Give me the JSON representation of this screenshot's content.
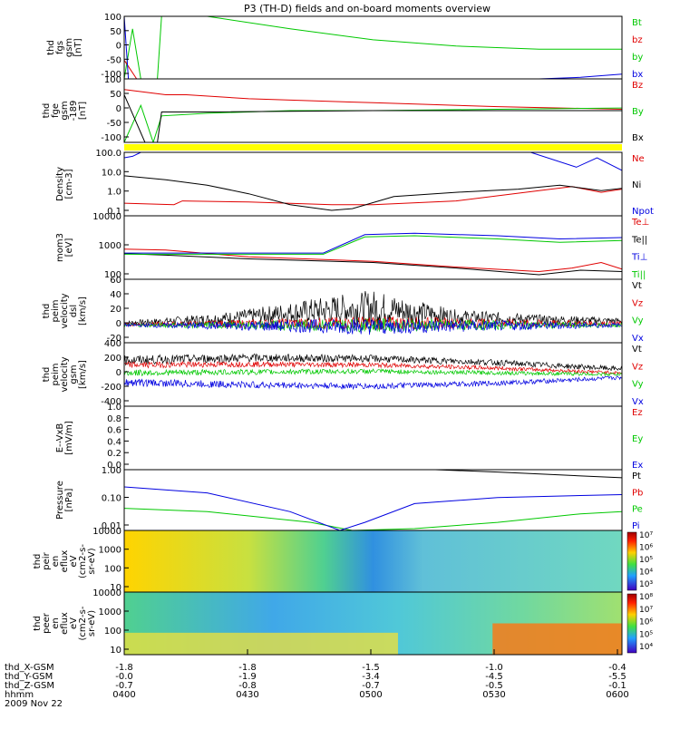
{
  "title": "P3 (TH-D) fields and on-board moments overview",
  "footer": {
    "labels": [
      "thd_X-GSM",
      "thd_Y-GSM",
      "thd_Z-GSM",
      "hhmm"
    ],
    "date": "2009 Nov 22",
    "rows": [
      [
        "-1.8",
        "-1.8",
        "-1.5",
        "-1.0",
        "-0.4"
      ],
      [
        "-0.0",
        "-1.9",
        "-3.4",
        "-4.5",
        "-5.5"
      ],
      [
        "-0.7",
        "-0.8",
        "-0.7",
        "-0.5",
        "-0.1"
      ],
      [
        "0400",
        "0430",
        "0500",
        "0530",
        "0600"
      ]
    ]
  },
  "colors": {
    "black": "#000000",
    "red": "#e00000",
    "green": "#00c800",
    "blue": "#0000e0",
    "yellow": "#ffff00"
  },
  "chart_data": [
    {
      "type": "line",
      "ylabel_lines": [
        "thd",
        "fgs",
        "gsm",
        "[nT]"
      ],
      "ylim": [
        -100,
        100
      ],
      "yticks": [
        "100",
        "50",
        "0",
        "-50",
        "-100"
      ],
      "xlim": [
        0,
        120
      ],
      "series": [
        {
          "name": "Bt",
          "color": "green",
          "points": [
            [
              0,
              -100
            ],
            [
              2,
              60
            ],
            [
              4,
              -100
            ],
            [
              8,
              -100
            ],
            [
              9,
              100
            ],
            [
              20,
              100
            ],
            [
              40,
              60
            ],
            [
              60,
              25
            ],
            [
              80,
              5
            ],
            [
              100,
              -5
            ],
            [
              120,
              -5
            ]
          ]
        },
        {
          "name": "bz",
          "color": "red",
          "points": [
            [
              0,
              -40
            ],
            [
              3,
              -100
            ],
            [
              120,
              -100
            ]
          ]
        },
        {
          "name": "by",
          "color": "green",
          "points": []
        },
        {
          "name": "bx",
          "color": "blue",
          "points": [
            [
              0,
              100
            ],
            [
              1,
              -100
            ],
            [
              100,
              -100
            ],
            [
              110,
              -95
            ],
            [
              120,
              -85
            ]
          ]
        }
      ]
    },
    {
      "type": "line",
      "ylabel_lines": [
        "thd",
        "fge",
        "gsm",
        "-189",
        "[nT]"
      ],
      "ylim": [
        -120,
        120
      ],
      "yticks": [
        "100",
        "50",
        "0",
        "-50",
        "-100"
      ],
      "xlim": [
        0,
        120
      ],
      "series": [
        {
          "name": "Bz",
          "color": "red",
          "points": [
            [
              0,
              80
            ],
            [
              5,
              70
            ],
            [
              10,
              60
            ],
            [
              15,
              60
            ],
            [
              30,
              45
            ],
            [
              60,
              30
            ],
            [
              90,
              15
            ],
            [
              120,
              5
            ]
          ]
        },
        {
          "name": "By",
          "color": "green",
          "points": [
            [
              0,
              -120
            ],
            [
              4,
              20
            ],
            [
              7,
              -120
            ],
            [
              9,
              -20
            ],
            [
              20,
              -10
            ],
            [
              40,
              0
            ],
            [
              60,
              0
            ],
            [
              90,
              5
            ],
            [
              120,
              10
            ]
          ]
        },
        {
          "name": "Bx",
          "color": "black",
          "points": [
            [
              0,
              60
            ],
            [
              5,
              -120
            ],
            [
              8,
              -120
            ],
            [
              9,
              -5
            ],
            [
              20,
              -5
            ],
            [
              60,
              0
            ],
            [
              90,
              0
            ],
            [
              120,
              0
            ]
          ]
        }
      ]
    },
    {
      "type": "line",
      "ylabel_lines": [
        "Density",
        "[cm-3]"
      ],
      "ylog": true,
      "ylim": [
        0.06,
        200
      ],
      "yticks": [
        "100.0",
        "10.0",
        "1.0",
        "0.1"
      ],
      "xlim": [
        0,
        120
      ],
      "series": [
        {
          "name": "Ne",
          "color": "red",
          "points": [
            [
              0,
              0.3
            ],
            [
              12,
              0.25
            ],
            [
              14,
              0.4
            ],
            [
              30,
              0.35
            ],
            [
              50,
              0.25
            ],
            [
              60,
              0.25
            ],
            [
              80,
              0.4
            ],
            [
              100,
              1.5
            ],
            [
              108,
              2.5
            ],
            [
              115,
              1.2
            ],
            [
              120,
              1.8
            ]
          ]
        },
        {
          "name": "Ni",
          "color": "black",
          "points": [
            [
              0,
              10
            ],
            [
              10,
              6
            ],
            [
              20,
              3
            ],
            [
              30,
              1
            ],
            [
              40,
              0.25
            ],
            [
              50,
              0.12
            ],
            [
              55,
              0.15
            ],
            [
              65,
              0.7
            ],
            [
              80,
              1.2
            ],
            [
              95,
              1.8
            ],
            [
              105,
              3
            ],
            [
              115,
              1.5
            ],
            [
              120,
              2
            ]
          ]
        },
        {
          "name": "Npot",
          "color": "blue",
          "points": [
            [
              0,
              100
            ],
            [
              2,
              120
            ],
            [
              4,
              200
            ],
            [
              98,
              200
            ],
            [
              109,
              30
            ],
            [
              114,
              100
            ],
            [
              120,
              20
            ]
          ]
        }
      ]
    },
    {
      "type": "line",
      "ylabel_lines": [
        "mom3",
        "[eV]"
      ],
      "ylog": true,
      "ylim": [
        40,
        12000
      ],
      "yticks": [
        "10000",
        "1000",
        "100"
      ],
      "xlim": [
        0,
        120
      ],
      "series": [
        {
          "name": "Te⊥",
          "color": "red",
          "points": [
            [
              0,
              600
            ],
            [
              10,
              550
            ],
            [
              30,
              300
            ],
            [
              60,
              200
            ],
            [
              80,
              120
            ],
            [
              100,
              80
            ],
            [
              108,
              110
            ],
            [
              115,
              180
            ],
            [
              120,
              100
            ]
          ]
        },
        {
          "name": "Te||",
          "color": "black",
          "points": [
            [
              0,
              400
            ],
            [
              10,
              350
            ],
            [
              30,
              250
            ],
            [
              60,
              180
            ],
            [
              80,
              110
            ],
            [
              100,
              60
            ],
            [
              110,
              90
            ],
            [
              120,
              80
            ]
          ]
        },
        {
          "name": "Ti⊥",
          "color": "blue",
          "points": [
            [
              0,
              420
            ],
            [
              25,
              420
            ],
            [
              48,
              420
            ],
            [
              58,
              2200
            ],
            [
              70,
              2500
            ],
            [
              90,
              2000
            ],
            [
              105,
              1500
            ],
            [
              120,
              1700
            ]
          ]
        },
        {
          "name": "Ti||",
          "color": "green",
          "points": [
            [
              0,
              380
            ],
            [
              25,
              380
            ],
            [
              48,
              380
            ],
            [
              58,
              1800
            ],
            [
              70,
              2000
            ],
            [
              90,
              1500
            ],
            [
              105,
              1100
            ],
            [
              120,
              1300
            ]
          ]
        }
      ]
    },
    {
      "type": "line",
      "ylabel_lines": [
        "thd",
        "peim",
        "velocity",
        "dsl",
        "[km/s]"
      ],
      "ylim": [
        -25,
        65
      ],
      "yticks": [
        "60",
        "40",
        "20",
        "0",
        "-20"
      ],
      "xlim": [
        0,
        120
      ],
      "noisy": true,
      "series": [
        {
          "name": "Vt",
          "color": "black",
          "center": [
            [
              0,
              3
            ],
            [
              20,
              8
            ],
            [
              45,
              20
            ],
            [
              60,
              25
            ],
            [
              80,
              12
            ],
            [
              100,
              8
            ],
            [
              120,
              6
            ]
          ],
          "amp": [
            [
              0,
              3
            ],
            [
              30,
              10
            ],
            [
              60,
              25
            ],
            [
              80,
              10
            ],
            [
              120,
              4
            ]
          ]
        },
        {
          "name": "Vz",
          "color": "red",
          "center": [
            [
              0,
              1
            ],
            [
              60,
              3
            ],
            [
              120,
              2
            ]
          ],
          "amp": [
            [
              0,
              2
            ],
            [
              60,
              10
            ],
            [
              120,
              3
            ]
          ]
        },
        {
          "name": "Vy",
          "color": "green",
          "center": [
            [
              0,
              0
            ],
            [
              60,
              0
            ],
            [
              120,
              0
            ]
          ],
          "amp": [
            [
              0,
              2
            ],
            [
              60,
              10
            ],
            [
              120,
              3
            ]
          ]
        },
        {
          "name": "Vx",
          "color": "blue",
          "center": [
            [
              0,
              0
            ],
            [
              60,
              -2
            ],
            [
              120,
              0
            ]
          ],
          "amp": [
            [
              0,
              2
            ],
            [
              60,
              12
            ],
            [
              120,
              3
            ]
          ]
        }
      ]
    },
    {
      "type": "line",
      "ylabel_lines": [
        "thd",
        "peim",
        "velocity",
        "gsm",
        "[km/s]"
      ],
      "ylim": [
        -400,
        400
      ],
      "yticks": [
        "400",
        "200",
        "0",
        "-200",
        "-400"
      ],
      "xlim": [
        0,
        120
      ],
      "noisy": true,
      "series": [
        {
          "name": "Vt",
          "color": "black",
          "center": [
            [
              0,
              180
            ],
            [
              30,
              210
            ],
            [
              60,
              200
            ],
            [
              90,
              150
            ],
            [
              120,
              70
            ]
          ],
          "amp": [
            [
              0,
              60
            ],
            [
              120,
              30
            ]
          ]
        },
        {
          "name": "Vz",
          "color": "red",
          "center": [
            [
              0,
              120
            ],
            [
              30,
              130
            ],
            [
              60,
              120
            ],
            [
              90,
              80
            ],
            [
              120,
              20
            ]
          ],
          "amp": [
            [
              0,
              40
            ],
            [
              120,
              20
            ]
          ]
        },
        {
          "name": "Vy",
          "color": "green",
          "center": [
            [
              0,
              20
            ],
            [
              30,
              30
            ],
            [
              60,
              40
            ],
            [
              90,
              20
            ],
            [
              120,
              0
            ]
          ],
          "amp": [
            [
              0,
              40
            ],
            [
              120,
              20
            ]
          ]
        },
        {
          "name": "Vx",
          "color": "blue",
          "center": [
            [
              0,
              -100
            ],
            [
              30,
              -130
            ],
            [
              60,
              -150
            ],
            [
              90,
              -110
            ],
            [
              120,
              -40
            ]
          ],
          "amp": [
            [
              0,
              50
            ],
            [
              120,
              25
            ]
          ]
        }
      ]
    },
    {
      "type": "line",
      "ylabel_lines": [
        "E--VxB",
        "[mV/m]"
      ],
      "ylim": [
        0,
        1.0
      ],
      "yticks": [
        "1.0",
        "0.8",
        "0.6",
        "0.4",
        "0.2",
        "0.0"
      ],
      "xlim": [
        0,
        120
      ],
      "series": [
        {
          "name": "Ez",
          "color": "red",
          "points": []
        },
        {
          "name": "Ey",
          "color": "green",
          "points": []
        },
        {
          "name": "Ex",
          "color": "blue",
          "points": []
        }
      ]
    },
    {
      "type": "line",
      "ylabel_lines": [
        "Pressure",
        "[nPa]"
      ],
      "ylog": true,
      "ylim": [
        0.006,
        1.1
      ],
      "yticks": [
        "1.00",
        "0.10",
        "0.01"
      ],
      "xlim": [
        0,
        120
      ],
      "series": [
        {
          "name": "Pt",
          "color": "black",
          "points": [
            [
              75,
              1.1
            ],
            [
              90,
              0.9
            ],
            [
              105,
              0.7
            ],
            [
              120,
              0.55
            ]
          ]
        },
        {
          "name": "Pb",
          "color": "red",
          "points": []
        },
        {
          "name": "Pe",
          "color": "green",
          "points": [
            [
              0,
              0.04
            ],
            [
              20,
              0.03
            ],
            [
              45,
              0.012
            ],
            [
              55,
              0.006
            ],
            [
              70,
              0.007
            ],
            [
              90,
              0.012
            ],
            [
              110,
              0.025
            ],
            [
              120,
              0.03
            ]
          ]
        },
        {
          "name": "Pi",
          "color": "blue",
          "points": [
            [
              0,
              0.25
            ],
            [
              20,
              0.15
            ],
            [
              40,
              0.03
            ],
            [
              52,
              0.006
            ],
            [
              58,
              0.012
            ],
            [
              70,
              0.06
            ],
            [
              90,
              0.1
            ],
            [
              110,
              0.12
            ],
            [
              120,
              0.13
            ]
          ]
        }
      ]
    },
    {
      "type": "heatmap",
      "ylabel_lines": [
        "thd",
        "peir",
        "en",
        "eflux",
        "eV",
        "(cm2-s-",
        "sr-eV)"
      ],
      "yticks": [
        "10000",
        "1000",
        "100",
        "10"
      ],
      "colorbar_ticks": [
        "10⁷",
        "10⁶",
        "10⁵",
        "10⁴",
        "10³"
      ]
    },
    {
      "type": "heatmap",
      "ylabel_lines": [
        "thd",
        "peer",
        "en",
        "eflux",
        "eV",
        "(cm2-s-",
        "sr-eV)"
      ],
      "yticks": [
        "10000",
        "1000",
        "100",
        "10"
      ],
      "colorbar_ticks": [
        "10⁸",
        "10⁷",
        "10⁶",
        "10⁵",
        "10⁴"
      ]
    }
  ]
}
